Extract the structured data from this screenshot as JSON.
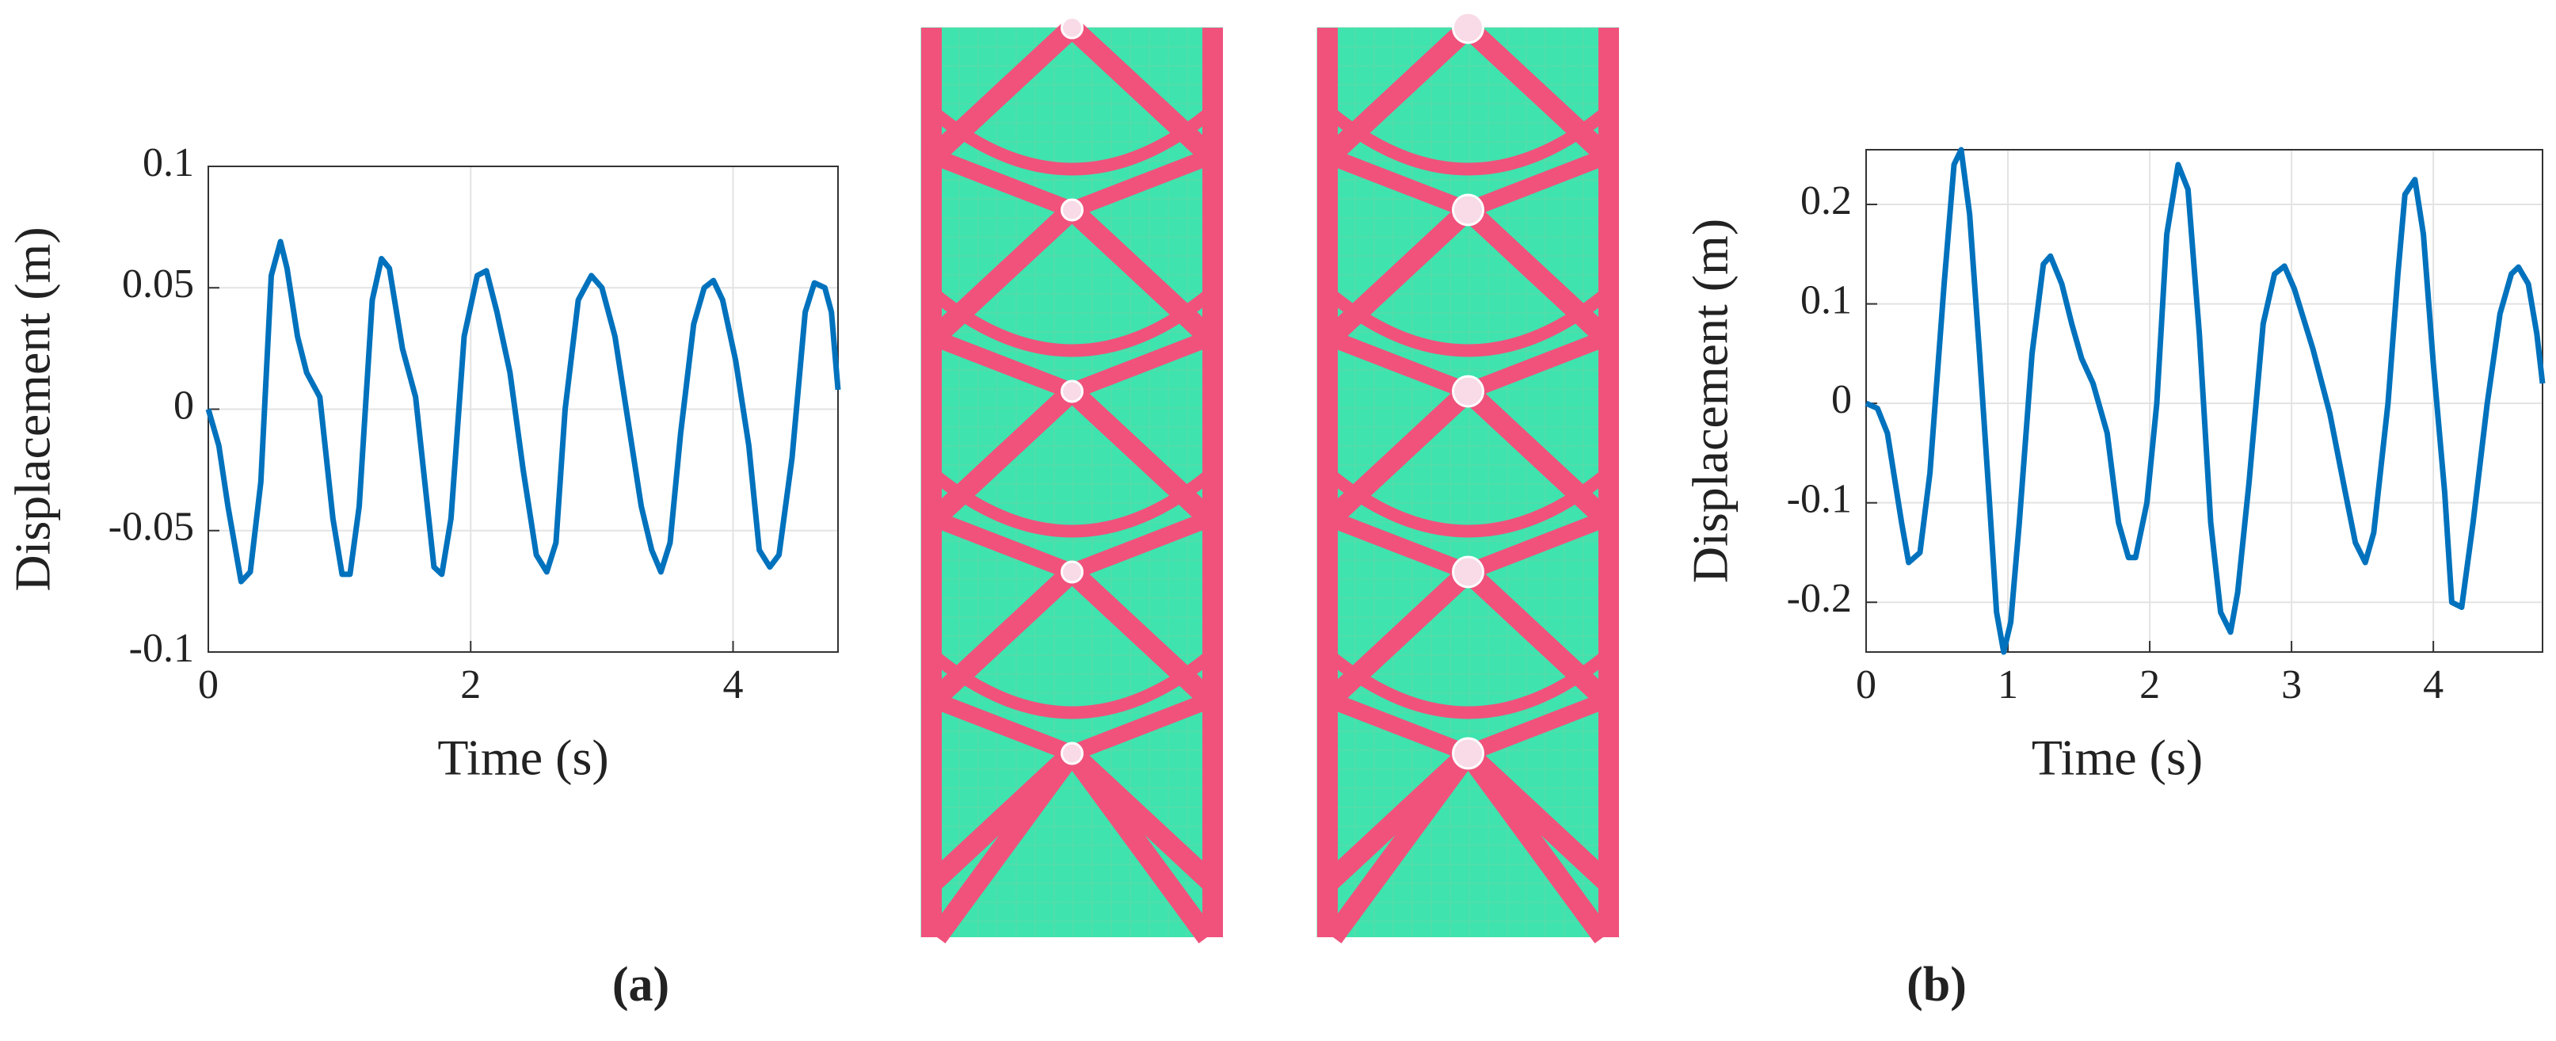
{
  "chart_data": [
    {
      "type": "line",
      "panel_label": "(a)",
      "xlabel": "Time (s)",
      "ylabel": "Displacement (m)",
      "color": "#0072bd",
      "grid": true,
      "xlim": [
        0,
        4.8
      ],
      "ylim": [
        -0.1,
        0.1
      ],
      "xticks": [
        0,
        2,
        4
      ],
      "yticks": [
        -0.1,
        -0.05,
        0,
        0.05,
        0.1
      ],
      "x": [
        0,
        0.08,
        0.15,
        0.25,
        0.32,
        0.4,
        0.48,
        0.55,
        0.6,
        0.68,
        0.75,
        0.85,
        0.95,
        1.02,
        1.08,
        1.15,
        1.25,
        1.32,
        1.38,
        1.48,
        1.58,
        1.65,
        1.72,
        1.78,
        1.85,
        1.95,
        2.05,
        2.12,
        2.2,
        2.3,
        2.4,
        2.5,
        2.58,
        2.65,
        2.72,
        2.82,
        2.92,
        3.0,
        3.1,
        3.2,
        3.3,
        3.38,
        3.45,
        3.52,
        3.6,
        3.7,
        3.78,
        3.85,
        3.92,
        4.02,
        4.12,
        4.2,
        4.28,
        4.35,
        4.45,
        4.55,
        4.62,
        4.7,
        4.75,
        4.8
      ],
      "values": [
        0,
        -0.015,
        -0.04,
        -0.071,
        -0.067,
        -0.03,
        0.055,
        0.069,
        0.058,
        0.03,
        0.015,
        0.005,
        -0.045,
        -0.068,
        -0.068,
        -0.04,
        0.045,
        0.062,
        0.058,
        0.025,
        0.005,
        -0.03,
        -0.065,
        -0.068,
        -0.045,
        0.03,
        0.055,
        0.057,
        0.04,
        0.015,
        -0.025,
        -0.06,
        -0.067,
        -0.055,
        0.0,
        0.045,
        0.055,
        0.05,
        0.03,
        -0.005,
        -0.04,
        -0.058,
        -0.067,
        -0.055,
        -0.01,
        0.035,
        0.05,
        0.053,
        0.045,
        0.02,
        -0.015,
        -0.058,
        -0.065,
        -0.06,
        -0.02,
        0.04,
        0.052,
        0.05,
        0.04,
        0.008
      ]
    },
    {
      "type": "line",
      "panel_label": "(b)",
      "xlabel": "Time (s)",
      "ylabel": "Displacement (m)",
      "color": "#0072bd",
      "grid": true,
      "xlim": [
        0,
        4.77
      ],
      "ylim": [
        -0.25,
        0.255
      ],
      "xticks": [
        0,
        1,
        2,
        3,
        4
      ],
      "yticks": [
        -0.2,
        -0.1,
        0,
        0.1,
        0.2
      ],
      "x": [
        0,
        0.08,
        0.15,
        0.25,
        0.3,
        0.38,
        0.45,
        0.55,
        0.62,
        0.67,
        0.73,
        0.8,
        0.87,
        0.92,
        0.97,
        1.02,
        1.08,
        1.17,
        1.25,
        1.3,
        1.38,
        1.45,
        1.52,
        1.6,
        1.7,
        1.78,
        1.85,
        1.9,
        1.98,
        2.05,
        2.12,
        2.2,
        2.27,
        2.35,
        2.43,
        2.5,
        2.57,
        2.62,
        2.7,
        2.8,
        2.88,
        2.95,
        3.02,
        3.15,
        3.27,
        3.38,
        3.45,
        3.52,
        3.58,
        3.68,
        3.75,
        3.8,
        3.87,
        3.93,
        4.0,
        4.08,
        4.13,
        4.2,
        4.28,
        4.38,
        4.47,
        4.55,
        4.6,
        4.67,
        4.73,
        4.77
      ],
      "values": [
        0,
        -0.005,
        -0.03,
        -0.12,
        -0.16,
        -0.15,
        -0.07,
        0.12,
        0.24,
        0.255,
        0.19,
        0.05,
        -0.1,
        -0.21,
        -0.25,
        -0.22,
        -0.12,
        0.05,
        0.14,
        0.148,
        0.12,
        0.08,
        0.045,
        0.02,
        -0.03,
        -0.12,
        -0.155,
        -0.155,
        -0.1,
        0.0,
        0.17,
        0.24,
        0.215,
        0.07,
        -0.12,
        -0.21,
        -0.23,
        -0.19,
        -0.08,
        0.08,
        0.13,
        0.138,
        0.115,
        0.055,
        -0.01,
        -0.09,
        -0.14,
        -0.16,
        -0.13,
        0.0,
        0.13,
        0.21,
        0.225,
        0.17,
        0.04,
        -0.09,
        -0.2,
        -0.205,
        -0.12,
        0.0,
        0.09,
        0.13,
        0.137,
        0.12,
        0.07,
        0.02
      ]
    }
  ]
}
